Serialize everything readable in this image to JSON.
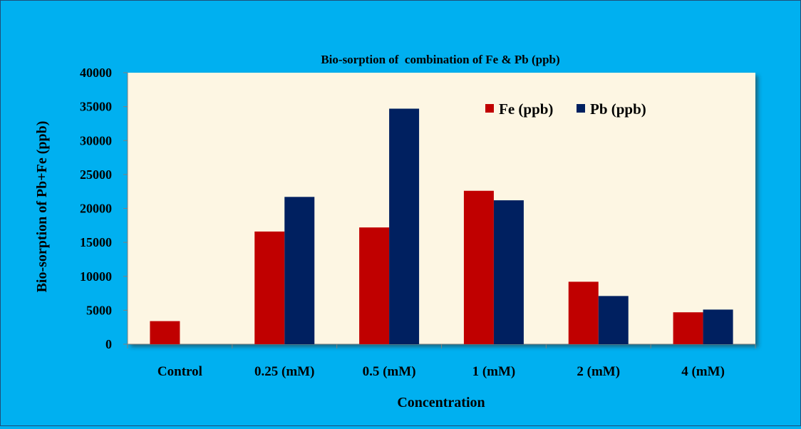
{
  "chart_data": {
    "type": "bar",
    "title": "Bio-sorption of  combination of Fe & Pb (ppb)",
    "xlabel": "Concentration",
    "ylabel": "Bio-sorption of Pb+Fe (ppb)",
    "categories": [
      "Control",
      "0.25 (mM)",
      "0.5 (mM)",
      "1 (mM)",
      "2 (mM)",
      "4  (mM)"
    ],
    "series": [
      {
        "name": "Fe (ppb)",
        "color": "#c00000",
        "values": [
          3400,
          16600,
          17200,
          22600,
          9200,
          4700
        ]
      },
      {
        "name": "Pb (ppb)",
        "color": "#002060",
        "values": [
          0,
          21700,
          34700,
          21200,
          7100,
          5100
        ]
      }
    ],
    "yticks": [
      "0",
      "5000",
      "10000",
      "15000",
      "20000",
      "25000",
      "30000",
      "35000",
      "40000"
    ],
    "ylim": [
      0,
      40000
    ],
    "grid": false,
    "legend_position": "top-right",
    "plot_background": "#fdf6e3",
    "page_background": "#00b0f0"
  }
}
